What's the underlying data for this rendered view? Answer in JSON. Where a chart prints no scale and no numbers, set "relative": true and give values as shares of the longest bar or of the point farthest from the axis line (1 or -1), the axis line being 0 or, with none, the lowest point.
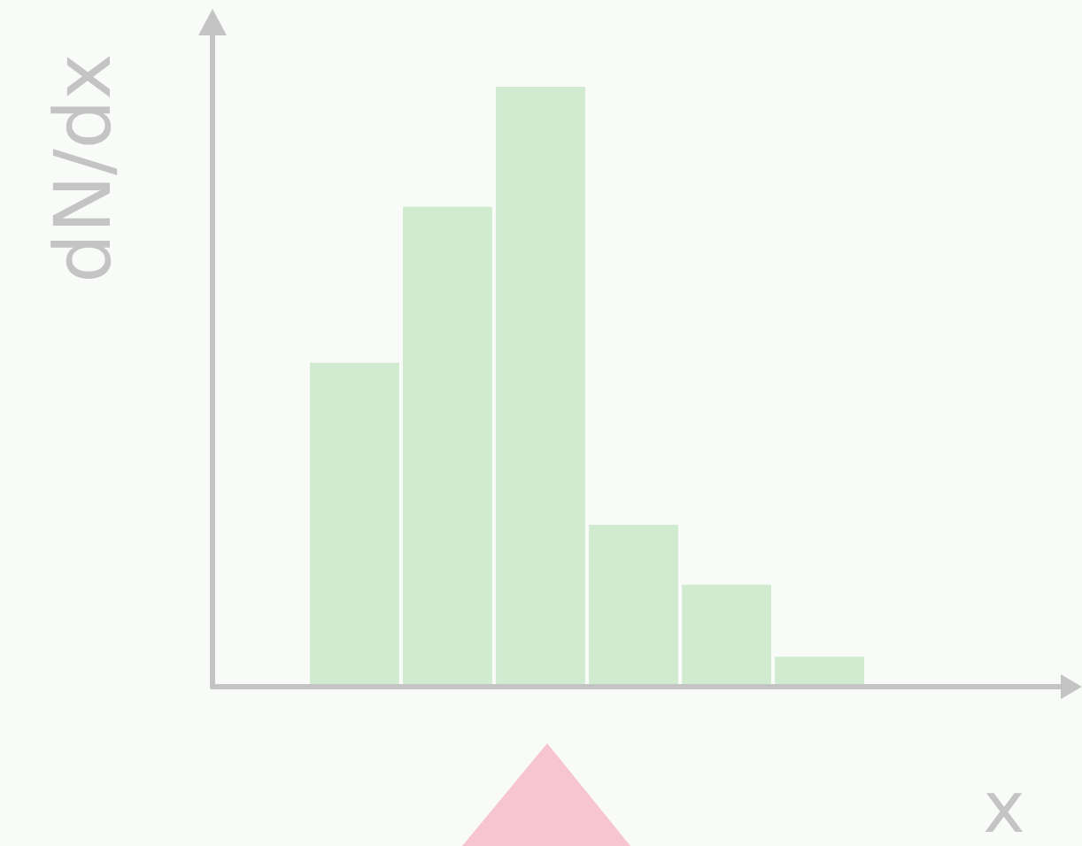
{
  "chart_data": {
    "type": "bar",
    "relative": true,
    "xlabel": "x",
    "ylabel": "dN/dx",
    "categories": [
      null,
      null,
      null,
      null,
      null,
      null
    ],
    "values": [
      0.54,
      0.8,
      1,
      0.27,
      0.17,
      0.05
    ],
    "color": "#d0ebd0"
  }
}
